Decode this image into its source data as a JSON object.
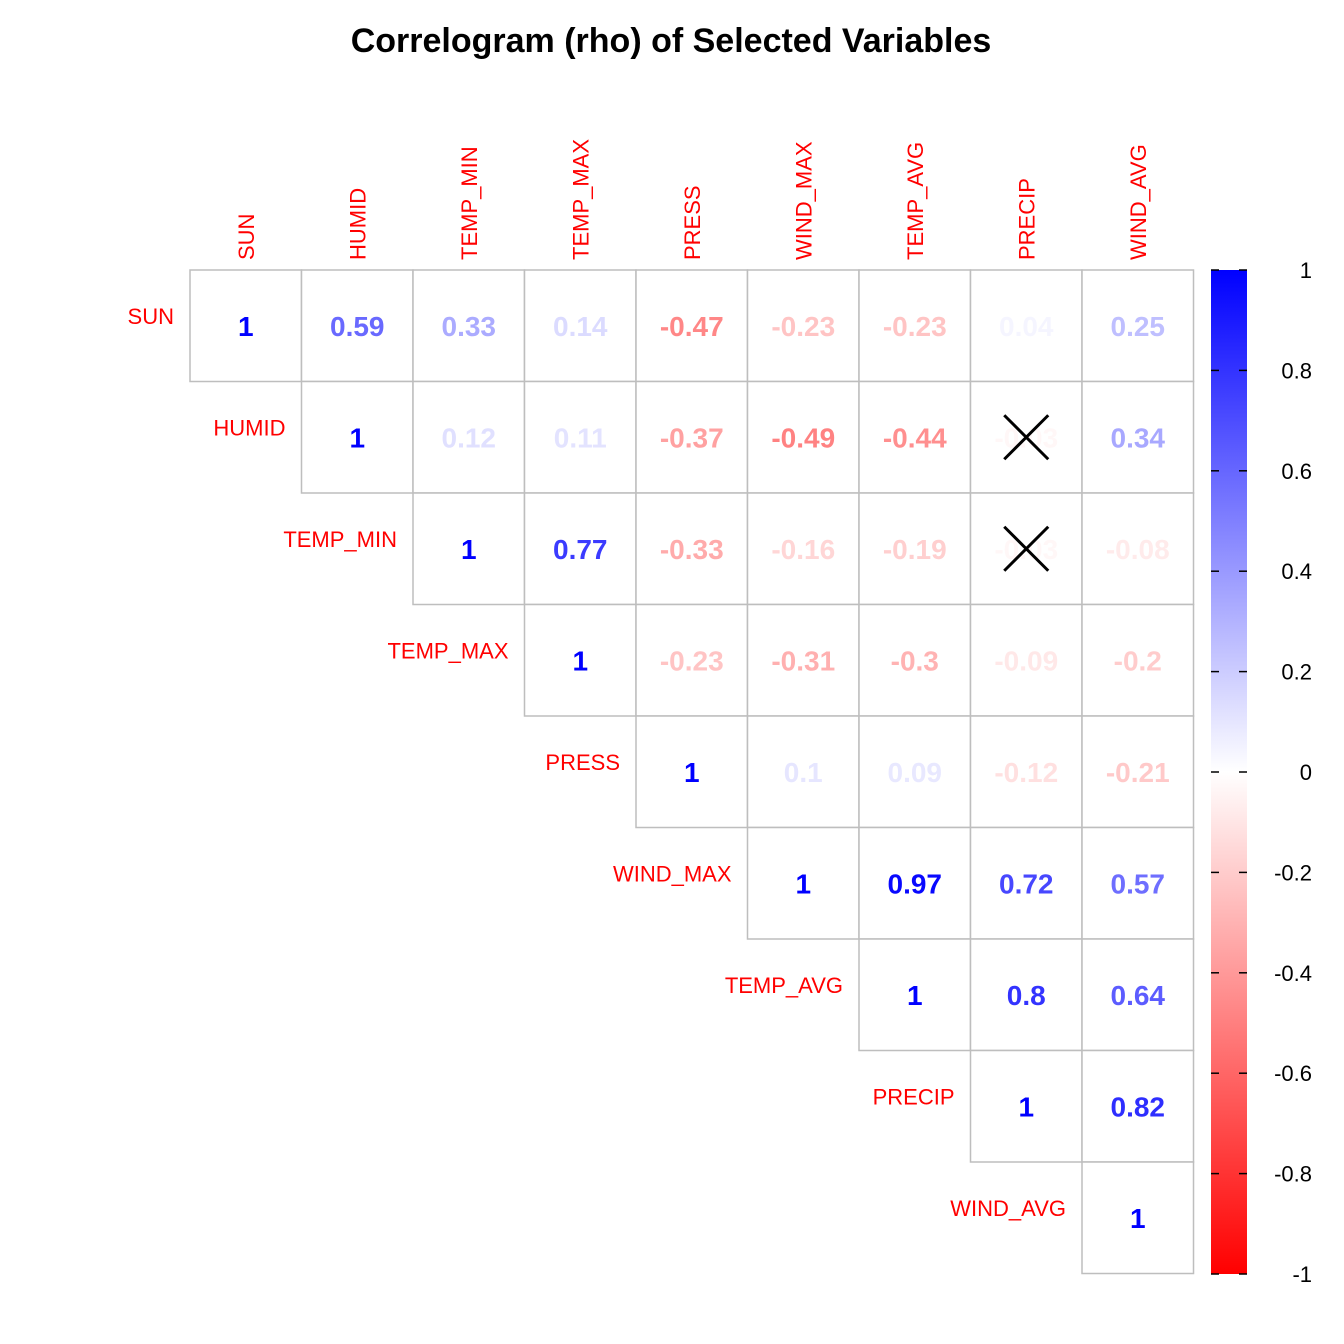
{
  "chart_data": {
    "type": "heatmap",
    "title": "Correlogram (rho) of Selected Variables",
    "variables": [
      "SUN",
      "HUMID",
      "TEMP_MIN",
      "TEMP_MAX",
      "PRESS",
      "WIND_MAX",
      "TEMP_AVG",
      "PRECIP",
      "WIND_AVG"
    ],
    "matrix_shape": "upper-triangle",
    "cells": [
      {
        "row": "SUN",
        "col": "SUN",
        "label": "1",
        "value": 1
      },
      {
        "row": "SUN",
        "col": "HUMID",
        "label": "0.59",
        "value": 0.59
      },
      {
        "row": "SUN",
        "col": "TEMP_MIN",
        "label": "0.33",
        "value": 0.33
      },
      {
        "row": "SUN",
        "col": "TEMP_MAX",
        "label": "0.14",
        "value": 0.14
      },
      {
        "row": "SUN",
        "col": "PRESS",
        "label": "-0.47",
        "value": -0.47
      },
      {
        "row": "SUN",
        "col": "WIND_MAX",
        "label": "-0.23",
        "value": -0.23
      },
      {
        "row": "SUN",
        "col": "TEMP_AVG",
        "label": "-0.23",
        "value": -0.23
      },
      {
        "row": "SUN",
        "col": "PRECIP",
        "label": "0.04",
        "value": 0.04
      },
      {
        "row": "SUN",
        "col": "WIND_AVG",
        "label": "0.25",
        "value": 0.25
      },
      {
        "row": "HUMID",
        "col": "HUMID",
        "label": "1",
        "value": 1
      },
      {
        "row": "HUMID",
        "col": "TEMP_MIN",
        "label": "0.12",
        "value": 0.12
      },
      {
        "row": "HUMID",
        "col": "TEMP_MAX",
        "label": "0.11",
        "value": 0.11
      },
      {
        "row": "HUMID",
        "col": "PRESS",
        "label": "-0.37",
        "value": -0.37
      },
      {
        "row": "HUMID",
        "col": "WIND_MAX",
        "label": "-0.49",
        "value": -0.49
      },
      {
        "row": "HUMID",
        "col": "TEMP_AVG",
        "label": "-0.44",
        "value": -0.44
      },
      {
        "row": "HUMID",
        "col": "PRECIP",
        "label": "-0.03",
        "value": -0.03,
        "crossed": true
      },
      {
        "row": "HUMID",
        "col": "WIND_AVG",
        "label": "0.34",
        "value": 0.34
      },
      {
        "row": "TEMP_MIN",
        "col": "TEMP_MIN",
        "label": "1",
        "value": 1
      },
      {
        "row": "TEMP_MIN",
        "col": "TEMP_MAX",
        "label": "0.77",
        "value": 0.77
      },
      {
        "row": "TEMP_MIN",
        "col": "PRESS",
        "label": "-0.33",
        "value": -0.33
      },
      {
        "row": "TEMP_MIN",
        "col": "WIND_MAX",
        "label": "-0.16",
        "value": -0.16
      },
      {
        "row": "TEMP_MIN",
        "col": "TEMP_AVG",
        "label": "-0.19",
        "value": -0.19
      },
      {
        "row": "TEMP_MIN",
        "col": "PRECIP",
        "label": "-0.03",
        "value": -0.03,
        "crossed": true
      },
      {
        "row": "TEMP_MIN",
        "col": "WIND_AVG",
        "label": "-0.08",
        "value": -0.08
      },
      {
        "row": "TEMP_MAX",
        "col": "TEMP_MAX",
        "label": "1",
        "value": 1
      },
      {
        "row": "TEMP_MAX",
        "col": "PRESS",
        "label": "-0.23",
        "value": -0.23
      },
      {
        "row": "TEMP_MAX",
        "col": "WIND_MAX",
        "label": "-0.31",
        "value": -0.31
      },
      {
        "row": "TEMP_MAX",
        "col": "TEMP_AVG",
        "label": "-0.3",
        "value": -0.3
      },
      {
        "row": "TEMP_MAX",
        "col": "PRECIP",
        "label": "-0.09",
        "value": -0.09
      },
      {
        "row": "TEMP_MAX",
        "col": "WIND_AVG",
        "label": "-0.2",
        "value": -0.2
      },
      {
        "row": "PRESS",
        "col": "PRESS",
        "label": "1",
        "value": 1
      },
      {
        "row": "PRESS",
        "col": "WIND_MAX",
        "label": "0.1",
        "value": 0.1
      },
      {
        "row": "PRESS",
        "col": "TEMP_AVG",
        "label": "0.09",
        "value": 0.09
      },
      {
        "row": "PRESS",
        "col": "PRECIP",
        "label": "-0.12",
        "value": -0.12
      },
      {
        "row": "PRESS",
        "col": "WIND_AVG",
        "label": "-0.21",
        "value": -0.21
      },
      {
        "row": "WIND_MAX",
        "col": "WIND_MAX",
        "label": "1",
        "value": 1
      },
      {
        "row": "WIND_MAX",
        "col": "TEMP_AVG",
        "label": "0.97",
        "value": 0.97
      },
      {
        "row": "WIND_MAX",
        "col": "PRECIP",
        "label": "0.72",
        "value": 0.72
      },
      {
        "row": "WIND_MAX",
        "col": "WIND_AVG",
        "label": "0.57",
        "value": 0.57
      },
      {
        "row": "TEMP_AVG",
        "col": "TEMP_AVG",
        "label": "1",
        "value": 1
      },
      {
        "row": "TEMP_AVG",
        "col": "PRECIP",
        "label": "0.8",
        "value": 0.8
      },
      {
        "row": "TEMP_AVG",
        "col": "WIND_AVG",
        "label": "0.64",
        "value": 0.64
      },
      {
        "row": "PRECIP",
        "col": "PRECIP",
        "label": "1",
        "value": 1
      },
      {
        "row": "PRECIP",
        "col": "WIND_AVG",
        "label": "0.82",
        "value": 0.82
      },
      {
        "row": "WIND_AVG",
        "col": "WIND_AVG",
        "label": "1",
        "value": 1
      }
    ],
    "colorbar": {
      "range": [
        -1,
        1
      ],
      "ticks": [
        "1",
        "0.8",
        "0.6",
        "0.4",
        "0.2",
        "0",
        "-0.2",
        "-0.4",
        "-0.6",
        "-0.8",
        "-1"
      ],
      "colors": {
        "negative": "#ff0000",
        "zero": "#ffffff",
        "positive": "#0000ff"
      }
    },
    "colors": {
      "label": "#ff0000",
      "grid": "#bebebe",
      "cross": "#000000"
    }
  }
}
